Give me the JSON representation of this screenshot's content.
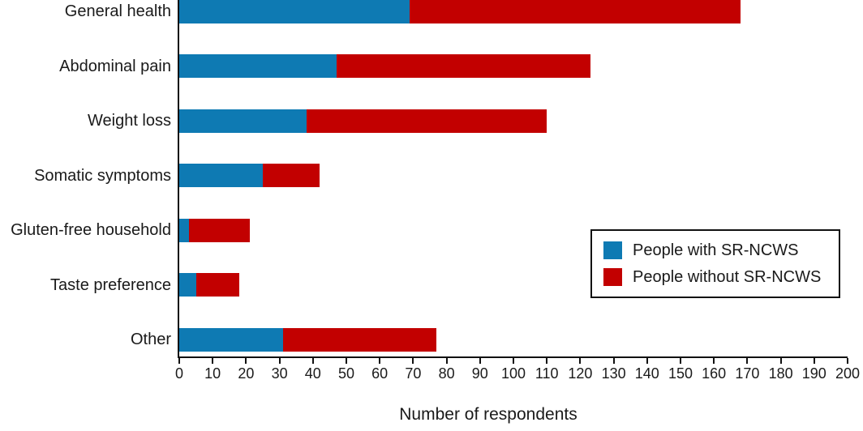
{
  "chart_data": {
    "type": "bar",
    "orientation": "horizontal",
    "stacked": true,
    "title": "",
    "xlabel": "Number of respondents",
    "ylabel": "",
    "categories": [
      "General health",
      "Abdominal pain",
      "Weight loss",
      "Somatic symptoms",
      "Gluten-free household",
      "Taste preference",
      "Other"
    ],
    "series": [
      {
        "name": "People with SR-NCWS",
        "color": "#0e7ab3",
        "values": [
          69,
          47,
          38,
          25,
          3,
          5,
          31
        ]
      },
      {
        "name": "People without SR-NCWS",
        "color": "#c20000",
        "values": [
          99,
          76,
          72,
          17,
          18,
          13,
          46
        ]
      }
    ],
    "totals": [
      168,
      123,
      110,
      42,
      21,
      18,
      77
    ],
    "xlim": [
      0,
      200
    ],
    "xticks": [
      0,
      10,
      20,
      30,
      40,
      50,
      60,
      70,
      80,
      90,
      100,
      110,
      120,
      130,
      140,
      150,
      160,
      170,
      180,
      190,
      200
    ],
    "grid": false,
    "legend_position": "right-middle"
  },
  "colors": {
    "with_sr_ncws": "#0e7ab3",
    "without_sr_ncws": "#c20000",
    "axis": "#111111",
    "text": "#1a1a1a",
    "background": "#ffffff"
  }
}
